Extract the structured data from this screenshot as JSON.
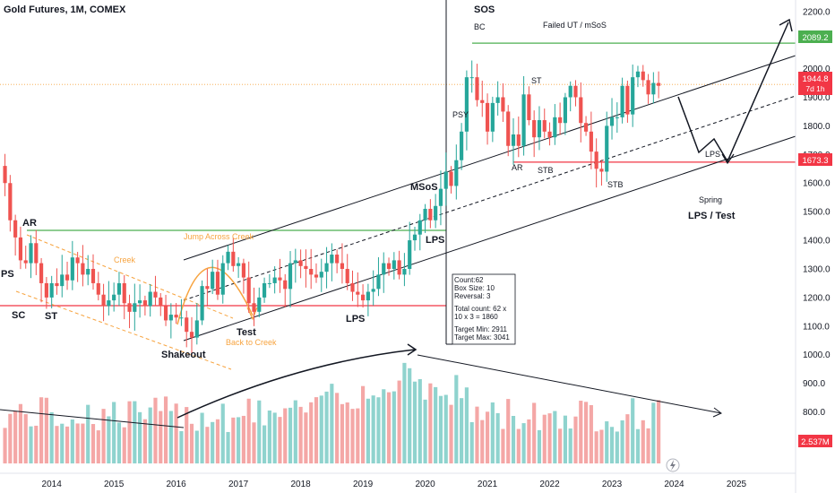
{
  "title": "Gold Futures, 1M, COMEX",
  "colors": {
    "up": "#26a69a",
    "down": "#ef5350",
    "vol_up": "#8fd3ce",
    "vol_down": "#f4a7a6",
    "green_line": "#4caf50",
    "red_line": "#f23645",
    "orange": "#f7a440",
    "badge_green": "#4caf50",
    "badge_red": "#f23645"
  },
  "chart_data": {
    "type": "candlestick",
    "title": "Gold Futures, 1M, COMEX",
    "ylim": [
      620,
      2240
    ],
    "y_ticks": [
      700,
      800,
      900,
      1000,
      1100,
      1200,
      1300,
      1400,
      1500,
      1600,
      1700,
      1800,
      1900,
      2000,
      2100,
      2200
    ],
    "y_tick_labels": [
      "700.0",
      "800.0",
      "900.0",
      "1000.0",
      "1100.0",
      "1200.0",
      "1300.0",
      "1400.0",
      "1500.0",
      "1600.0",
      "1700.0",
      "1800.0",
      "1900.0",
      "2000.0",
      "2100.0",
      "2200.0"
    ],
    "x_ticks": [
      "2014",
      "2015",
      "2016",
      "2017",
      "2018",
      "2019",
      "2020",
      "2021",
      "2022",
      "2023",
      "2024",
      "2025"
    ],
    "x_tick_years": [
      2014,
      2015,
      2016,
      2017,
      2018,
      2019,
      2020,
      2021,
      2022,
      2023,
      2024,
      2025
    ],
    "x_range": [
      2013.17,
      2025.95
    ],
    "candles_start": 2013.25,
    "candles_step_months": 1,
    "closes": [
      1600,
      1470,
      1410,
      1330,
      1320,
      1390,
      1320,
      1250,
      1200,
      1250,
      1240,
      1280,
      1260,
      1340,
      1320,
      1280,
      1300,
      1250,
      1210,
      1170,
      1190,
      1210,
      1250,
      1180,
      1150,
      1180,
      1190,
      1170,
      1220,
      1200,
      1170,
      1120,
      1140,
      1130,
      1130,
      1080,
      1060,
      1120,
      1240,
      1230,
      1290,
      1210,
      1320,
      1360,
      1310,
      1320,
      1270,
      1180,
      1150,
      1200,
      1250,
      1250,
      1270,
      1260,
      1230,
      1320,
      1330,
      1310,
      1300,
      1280,
      1270,
      1290,
      1320,
      1350,
      1320,
      1300,
      1250,
      1220,
      1210,
      1190,
      1220,
      1230,
      1280,
      1320,
      1300,
      1330,
      1280,
      1300,
      1400,
      1420,
      1470,
      1510,
      1470,
      1520,
      1580,
      1640,
      1590,
      1680,
      1780,
      1970,
      1970,
      1890,
      1880,
      1780,
      1880,
      1900,
      1850,
      1730,
      1770,
      1730,
      1910,
      1820,
      1760,
      1820,
      1780,
      1760,
      1830,
      1810,
      1900,
      1940,
      1900,
      1810,
      1780,
      1710,
      1650,
      1640,
      1800,
      1830,
      1830,
      1940,
      1840,
      1970,
      1990,
      1960,
      1910,
      1950,
      1940
    ],
    "volume_axis": {
      "ticks": [
        700,
        800,
        900,
        1000
      ],
      "unit": "K"
    },
    "volume_last": "2.537M",
    "volume_seed": "monthly",
    "last_price": {
      "label": "1944.8",
      "countdown": "7d 1h"
    },
    "price_levels": [
      {
        "value": 2089.2,
        "label": "2089.2",
        "kind": "resistance"
      },
      {
        "value": 1673.3,
        "label": "1673.3",
        "kind": "support"
      }
    ]
  },
  "labels": {
    "PS": "PS",
    "SC": "SC",
    "AR": "AR",
    "ST": "ST",
    "shakeout": "Shakeout",
    "test": "Test",
    "back_to_creek": "Back to Creek",
    "creek": "Creek",
    "jump": "Jump Across Creek",
    "lps1": "LPS",
    "lps2": "LPS",
    "msos": "MSoS",
    "sos": "SOS",
    "bc": "BC",
    "psy": "PSY",
    "failed_ut": "Failed UT / mSoS",
    "st2": "ST",
    "ar2": "AR",
    "stb1": "STB",
    "stb2": "STB",
    "lps3": "LPS",
    "spring": "Spring",
    "lps_test": "LPS / Test"
  },
  "pnf_box": {
    "line1": "Count:62",
    "line2": "Box Size: 10",
    "line3": "Reversal: 3",
    "line4": "Total count: 62 x",
    "line5": "10 x 3 = 1860",
    "line6": "Target Min: 2911",
    "line7": "Target Max: 3041"
  },
  "icons": {
    "lightning": "lightning-icon"
  }
}
